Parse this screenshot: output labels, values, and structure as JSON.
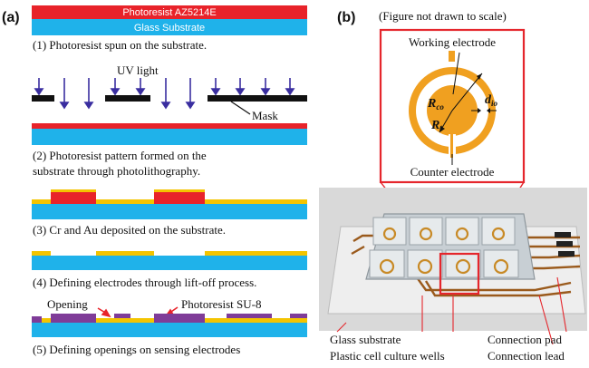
{
  "panel_a": {
    "label": "(a)",
    "layer_photoresist": "Photoresist AZ5214E",
    "layer_glass": "Glass Substrate",
    "uv_label": "UV light",
    "mask_label": "Mask",
    "opening_label": "Opening",
    "su8_label": "Photoresist SU-8",
    "steps": [
      "(1) Photoresist spun on the substrate.",
      "(2) Photoresist pattern formed on the",
      "substrate through photolithography.",
      "(3) Cr and Au deposited on the substrate.",
      "(4) Defining electrodes through lift-off process.",
      "(5) Defining openings on sensing electrodes"
    ]
  },
  "panel_b": {
    "label": "(b)",
    "note": "(Figure not drawn to scale)",
    "working_electrode": "Working electrode",
    "counter_electrode": "Counter electrode",
    "r_co": "R",
    "r_co_sub": "co",
    "r_i": "R",
    "r_i_sub": "i",
    "d_io": "d",
    "d_io_sub": "io",
    "glass_substrate": "Glass substrate",
    "culture_wells": "Plastic cell culture wells",
    "connection_pad": "Connection pad",
    "connection_lead": "Connection lead"
  },
  "colors": {
    "photoresist": "#e8232a",
    "glass": "#1fb2ea",
    "gold": "#f4c400",
    "su8": "#7f3c98",
    "arrow": "#3a2ea0",
    "electrode_ring": "#f0a020",
    "frame": "#e5262c"
  }
}
